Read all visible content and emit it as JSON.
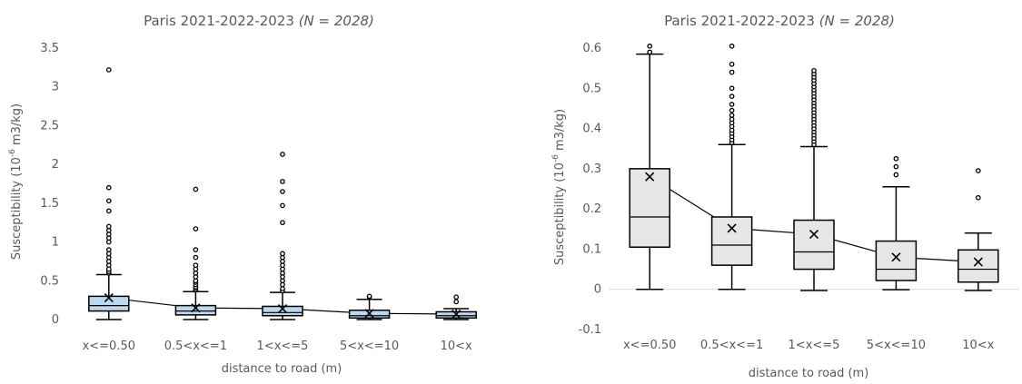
{
  "chart_data": [
    {
      "type": "box",
      "title": "Paris 2021-2022-2023",
      "title_italic": "(N = 2028)",
      "xlabel": "distance to  road (m)",
      "ylabel_prefix": "Susceptibility (10",
      "ylabel_sup": "-6",
      "ylabel_suffix": " m3/kg)",
      "ylim": [
        0,
        3.5
      ],
      "yticks": [
        0,
        0.5,
        1,
        1.5,
        2,
        2.5,
        3,
        3.5
      ],
      "ytick_labels": [
        "0",
        "0.5",
        "1",
        "1.5",
        "2",
        "2.5",
        "3",
        "3.5"
      ],
      "grid": false,
      "box_fill": "#bdd7ee",
      "categories": [
        "x<=0.50",
        "0.5<x<=1",
        "1<x<=5",
        "5<x<=10",
        "10<x"
      ],
      "boxes": [
        {
          "min": 0.0,
          "q1": 0.11,
          "median": 0.18,
          "q3": 0.3,
          "max": 0.58,
          "mean": 0.28,
          "outliers": [
            0.6,
            0.62,
            0.65,
            0.7,
            0.75,
            0.8,
            0.85,
            0.9,
            1.0,
            1.05,
            1.1,
            1.15,
            1.2,
            1.4,
            1.53,
            1.7,
            3.22
          ]
        },
        {
          "min": 0.0,
          "q1": 0.06,
          "median": 0.11,
          "q3": 0.18,
          "max": 0.36,
          "mean": 0.15,
          "outliers": [
            0.38,
            0.4,
            0.42,
            0.45,
            0.48,
            0.5,
            0.55,
            0.6,
            0.65,
            0.7,
            0.8,
            0.9,
            1.17,
            1.68
          ]
        },
        {
          "min": 0.0,
          "q1": 0.05,
          "median": 0.09,
          "q3": 0.17,
          "max": 0.35,
          "mean": 0.14,
          "outliers": [
            0.37,
            0.4,
            0.45,
            0.5,
            0.55,
            0.6,
            0.65,
            0.7,
            0.75,
            0.8,
            0.85,
            1.25,
            1.47,
            1.65,
            1.78,
            2.13
          ]
        },
        {
          "min": 0.0,
          "q1": 0.02,
          "median": 0.05,
          "q3": 0.12,
          "max": 0.26,
          "mean": 0.08,
          "outliers": [
            0.29,
            0.3
          ]
        },
        {
          "min": 0.0,
          "q1": 0.02,
          "median": 0.05,
          "q3": 0.1,
          "max": 0.14,
          "mean": 0.07,
          "outliers": [
            0.23,
            0.29
          ]
        }
      ]
    },
    {
      "type": "box",
      "title": "Paris 2021-2022-2023",
      "title_italic": "(N = 2028)",
      "xlabel": "distance to  road (m)",
      "ylabel_prefix": "Susceptibility (10",
      "ylabel_sup": "-6",
      "ylabel_suffix": " m3/kg)",
      "ylim": [
        -0.1,
        0.6
      ],
      "yticks": [
        -0.1,
        0,
        0.1,
        0.2,
        0.3,
        0.4,
        0.5,
        0.6
      ],
      "ytick_labels": [
        "-0.1",
        "0",
        "0.1",
        "0.2",
        "0.3",
        "0.4",
        "0.5",
        "0.6"
      ],
      "grid": false,
      "box_fill": "#e6e6e6",
      "categories": [
        "x<=0.50",
        "0.5<x<=1",
        "1<x<=5",
        "5<x<=10",
        "10<x"
      ],
      "boxes": [
        {
          "min": 0.0,
          "q1": 0.105,
          "median": 0.18,
          "q3": 0.3,
          "max": 0.585,
          "mean": 0.28,
          "outliers": [
            0.59,
            0.605
          ]
        },
        {
          "min": 0.0,
          "q1": 0.06,
          "median": 0.11,
          "q3": 0.18,
          "max": 0.36,
          "mean": 0.152,
          "outliers": [
            0.365,
            0.372,
            0.38,
            0.388,
            0.396,
            0.405,
            0.414,
            0.423,
            0.433,
            0.445,
            0.46,
            0.48,
            0.5,
            0.54,
            0.56,
            0.605
          ]
        },
        {
          "min": -0.003,
          "q1": 0.05,
          "median": 0.093,
          "q3": 0.172,
          "max": 0.355,
          "mean": 0.137,
          "outliers": [
            0.36,
            0.368,
            0.376,
            0.384,
            0.392,
            0.4,
            0.408,
            0.416,
            0.424,
            0.432,
            0.44,
            0.448,
            0.456,
            0.464,
            0.472,
            0.48,
            0.488,
            0.496,
            0.504,
            0.512,
            0.52,
            0.528,
            0.536,
            0.544
          ]
        },
        {
          "min": -0.001,
          "q1": 0.022,
          "median": 0.05,
          "q3": 0.12,
          "max": 0.255,
          "mean": 0.08,
          "outliers": [
            0.285,
            0.305,
            0.325
          ]
        },
        {
          "min": -0.003,
          "q1": 0.018,
          "median": 0.05,
          "q3": 0.098,
          "max": 0.14,
          "mean": 0.068,
          "outliers": [
            0.228,
            0.295
          ]
        }
      ]
    }
  ]
}
